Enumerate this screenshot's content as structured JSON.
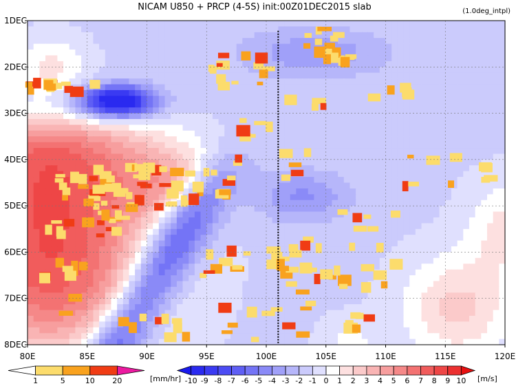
{
  "chart_data": {
    "type": "heatmap",
    "title": "NICAM  U850 + PRCP (4-5S) init:00Z01DEC2015 slab",
    "note": "(1.0deg_intpl)",
    "xlabel": "",
    "ylabel": "",
    "x_ticks": [
      "80E",
      "85E",
      "90E",
      "95E",
      "100E",
      "105E",
      "110E",
      "115E",
      "120E"
    ],
    "y_ticks": [
      "1DEC",
      "2DEC",
      "3DEC",
      "4DEC",
      "5DEC",
      "6DEC",
      "7DEC",
      "8DEC"
    ],
    "x_range": [
      80,
      120
    ],
    "y_range": [
      "1DEC",
      "8DEC"
    ],
    "grid": true,
    "reference_line": {
      "lon": 101,
      "style": "dotted"
    },
    "wind_field": {
      "variable": "U850",
      "units": "[m/s]",
      "levels": [
        -10,
        -9,
        -8,
        -7,
        -6,
        -5,
        -4,
        -3,
        -2,
        -1,
        0,
        1,
        2,
        3,
        4,
        5,
        6,
        7,
        8,
        9,
        10
      ],
      "level_labels": [
        "-10",
        "-9",
        "-8",
        "-7",
        "-6",
        "-5",
        "-4",
        "-3",
        "-2",
        "-1",
        "0",
        "1",
        "2",
        "3",
        "4",
        "5",
        "6",
        "7",
        "8",
        "9",
        "10"
      ],
      "colors": [
        "#2a2af0",
        "#3a3af2",
        "#4c4cf4",
        "#5f5ff5",
        "#7474f6",
        "#8a8af7",
        "#a0a0f9",
        "#b6b6fa",
        "#cbcbfc",
        "#e0e0fe",
        "#ffffff",
        "#fde0e0",
        "#fbcaca",
        "#f9b4b4",
        "#f79e9e",
        "#f58888",
        "#f37272",
        "#f15c5c",
        "#ee4646",
        "#ec3030"
      ]
    },
    "precip_field": {
      "variable": "PRCP",
      "units": "[mm/hr]",
      "levels": [
        1,
        5,
        10,
        20
      ],
      "level_labels": [
        "1",
        "5",
        "10",
        "20"
      ],
      "colors": [
        "#ffffff",
        "#fcdc6c",
        "#f9a21e",
        "#f03c14",
        "#ec1aa0"
      ]
    }
  }
}
